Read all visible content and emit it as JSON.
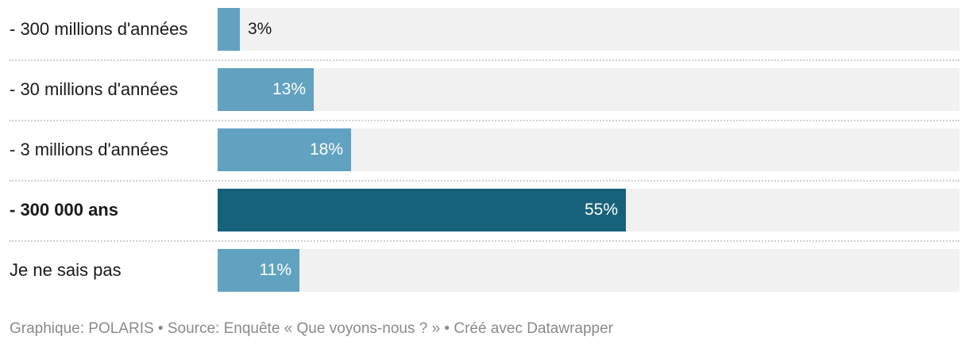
{
  "chart_data": {
    "type": "bar",
    "orientation": "horizontal",
    "categories": [
      "- 300 millions d'années",
      "- 30 millions d'années",
      "- 3 millions d'années",
      "- 300 000 ans",
      "Je ne sais pas"
    ],
    "values": [
      3,
      13,
      18,
      55,
      11
    ],
    "value_labels": [
      "3%",
      "13%",
      "18%",
      "55%",
      "11%"
    ],
    "highlighted_index": 3,
    "xlim": [
      0,
      100
    ],
    "unit": "%"
  },
  "colors": {
    "bar": "#62a2c1",
    "bar_highlight": "#17627b",
    "track": "#f1f1f1"
  },
  "footer": {
    "text": "Graphique: POLARIS • Source: Enquête « Que voyons-nous ? » • Créé avec Datawrapper"
  }
}
